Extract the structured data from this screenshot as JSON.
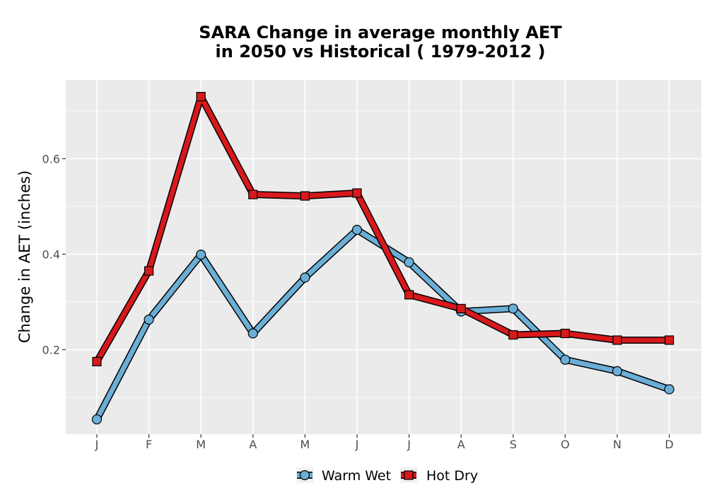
{
  "chart_data": {
    "type": "line",
    "title_line1": "SARA  Change in average monthly AET",
    "title_line2": "in 2050 vs Historical ( 1979-2012 )",
    "xlabel": "",
    "ylabel": "Change in AET (inches)",
    "categories": [
      "J",
      "F",
      "M",
      "A",
      "M",
      "J",
      "J",
      "A",
      "S",
      "O",
      "N",
      "D"
    ],
    "ylim": [
      0.023,
      0.765
    ],
    "yticks": [
      0.2,
      0.4,
      0.6
    ],
    "ytick_labels": [
      "0.2",
      "0.4",
      "0.6"
    ],
    "grid": true,
    "legend_position": "bottom",
    "series": [
      {
        "name": "Warm Wet",
        "marker": "circle",
        "color": "#6baed6",
        "values": [
          0.054,
          0.263,
          0.399,
          0.234,
          0.351,
          0.451,
          0.383,
          0.28,
          0.286,
          0.179,
          0.155,
          0.117
        ]
      },
      {
        "name": "Hot Dry",
        "marker": "square",
        "color": "#d7191c",
        "values": [
          0.175,
          0.365,
          0.73,
          0.525,
          0.522,
          0.528,
          0.315,
          0.286,
          0.231,
          0.234,
          0.22,
          0.22
        ]
      }
    ],
    "colors": {
      "panel_background": "#ebebeb",
      "grid_major": "#ffffff",
      "outline": "#000000"
    }
  }
}
